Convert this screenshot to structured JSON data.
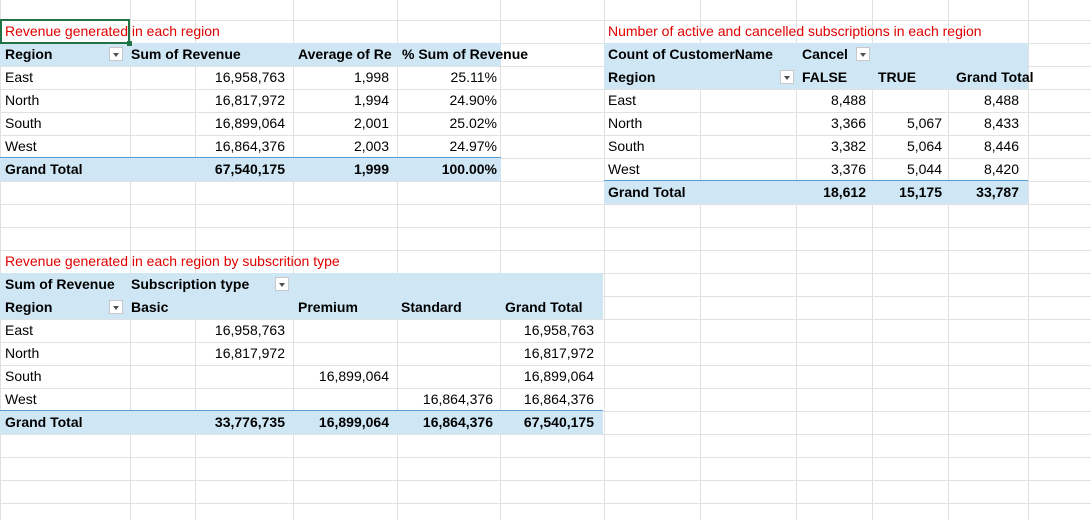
{
  "colors": {
    "title": "#e00000",
    "band": "#cfe7f5",
    "band_border": "#5b9bd5",
    "gridline": "#e1e1e1",
    "selection": "#217346"
  },
  "icons": {
    "filter_dropdown": "chevron-down-icon"
  },
  "pivot1": {
    "title": "Revenue generated in each region",
    "headers": [
      "Region",
      "Sum of Revenue",
      "Average of Re",
      "% Sum of Revenue"
    ],
    "rows": [
      [
        "East",
        "16,958,763",
        "1,998",
        "25.11%"
      ],
      [
        "North",
        "16,817,972",
        "1,994",
        "24.90%"
      ],
      [
        "South",
        "16,899,064",
        "2,001",
        "25.02%"
      ],
      [
        "West",
        "16,864,376",
        "2,003",
        "24.97%"
      ]
    ],
    "total": [
      "Grand Total",
      "67,540,175",
      "1,999",
      "100.00%"
    ]
  },
  "pivot2": {
    "title": "Number of active and cancelled subscriptions in each region",
    "value_label": "Count of CustomerName",
    "column_field": "Cancel",
    "headers": [
      "Region",
      "FALSE",
      "TRUE",
      "Grand Total"
    ],
    "rows": [
      [
        "East",
        "8,488",
        "",
        "8,488"
      ],
      [
        "North",
        "3,366",
        "5,067",
        "8,433"
      ],
      [
        "South",
        "3,382",
        "5,064",
        "8,446"
      ],
      [
        "West",
        "3,376",
        "5,044",
        "8,420"
      ]
    ],
    "total": [
      "Grand Total",
      "18,612",
      "15,175",
      "33,787"
    ]
  },
  "pivot3": {
    "title": "Revenue generated in each region by subscrition type",
    "value_label": "Sum of Revenue",
    "column_field": "Subscription type",
    "headers": [
      "Region",
      "Basic",
      "Premium",
      "Standard",
      "Grand Total"
    ],
    "rows": [
      [
        "East",
        "16,958,763",
        "",
        "",
        "16,958,763"
      ],
      [
        "North",
        "16,817,972",
        "",
        "",
        "16,817,972"
      ],
      [
        "South",
        "",
        "16,899,064",
        "",
        "16,899,064"
      ],
      [
        "West",
        "",
        "",
        "16,864,376",
        "16,864,376"
      ]
    ],
    "total": [
      "Grand Total",
      "33,776,735",
      "16,899,064",
      "16,864,376",
      "67,540,175"
    ]
  }
}
